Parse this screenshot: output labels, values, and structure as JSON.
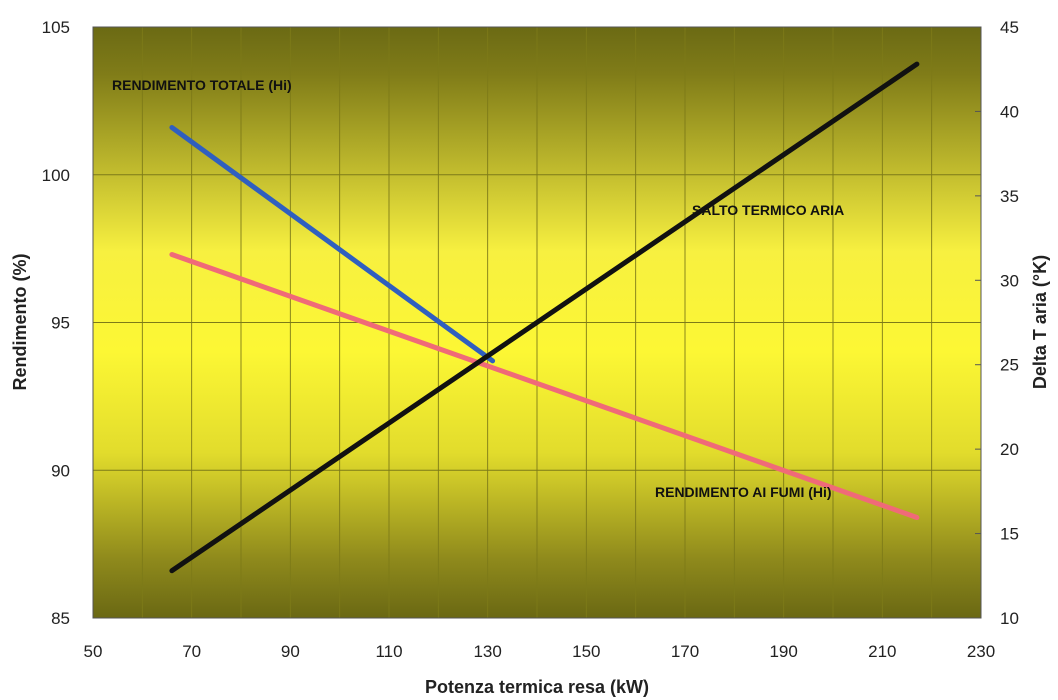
{
  "chart_data": {
    "type": "line",
    "title": "",
    "xlabel": "Potenza termica resa (kW)",
    "ylabel_left": "Rendimento (%)",
    "ylabel_right": "Delta T aria (°K)",
    "xlim": [
      50,
      230
    ],
    "ylim_left": [
      85,
      105
    ],
    "ylim_right": [
      10,
      45
    ],
    "x_ticks": [
      50,
      70,
      90,
      110,
      130,
      150,
      170,
      190,
      210,
      230
    ],
    "y_left_ticks": [
      85,
      90,
      95,
      100,
      105
    ],
    "y_right_ticks": [
      10,
      15,
      20,
      25,
      30,
      35,
      40,
      45
    ],
    "grid": true,
    "series": [
      {
        "name": "RENDIMENTO TOTALE (Hi)",
        "axis": "left",
        "color": "#2f5fbf",
        "x": [
          66,
          131
        ],
        "y": [
          101.6,
          93.7
        ]
      },
      {
        "name": "RENDIMENTO AI FUMI (Hi)",
        "axis": "left",
        "color": "#f06a78",
        "x": [
          66,
          217
        ],
        "y": [
          97.3,
          88.4
        ]
      },
      {
        "name": "SALTO TERMICO ARIA",
        "axis": "right",
        "color": "#111111",
        "x": [
          66,
          217
        ],
        "y": [
          12.8,
          42.8
        ]
      }
    ]
  },
  "colors": {
    "plot_edge": "#6b6a14",
    "plot_center": "#fbf534",
    "grid": "#7d7a18",
    "axis": "#444444"
  }
}
